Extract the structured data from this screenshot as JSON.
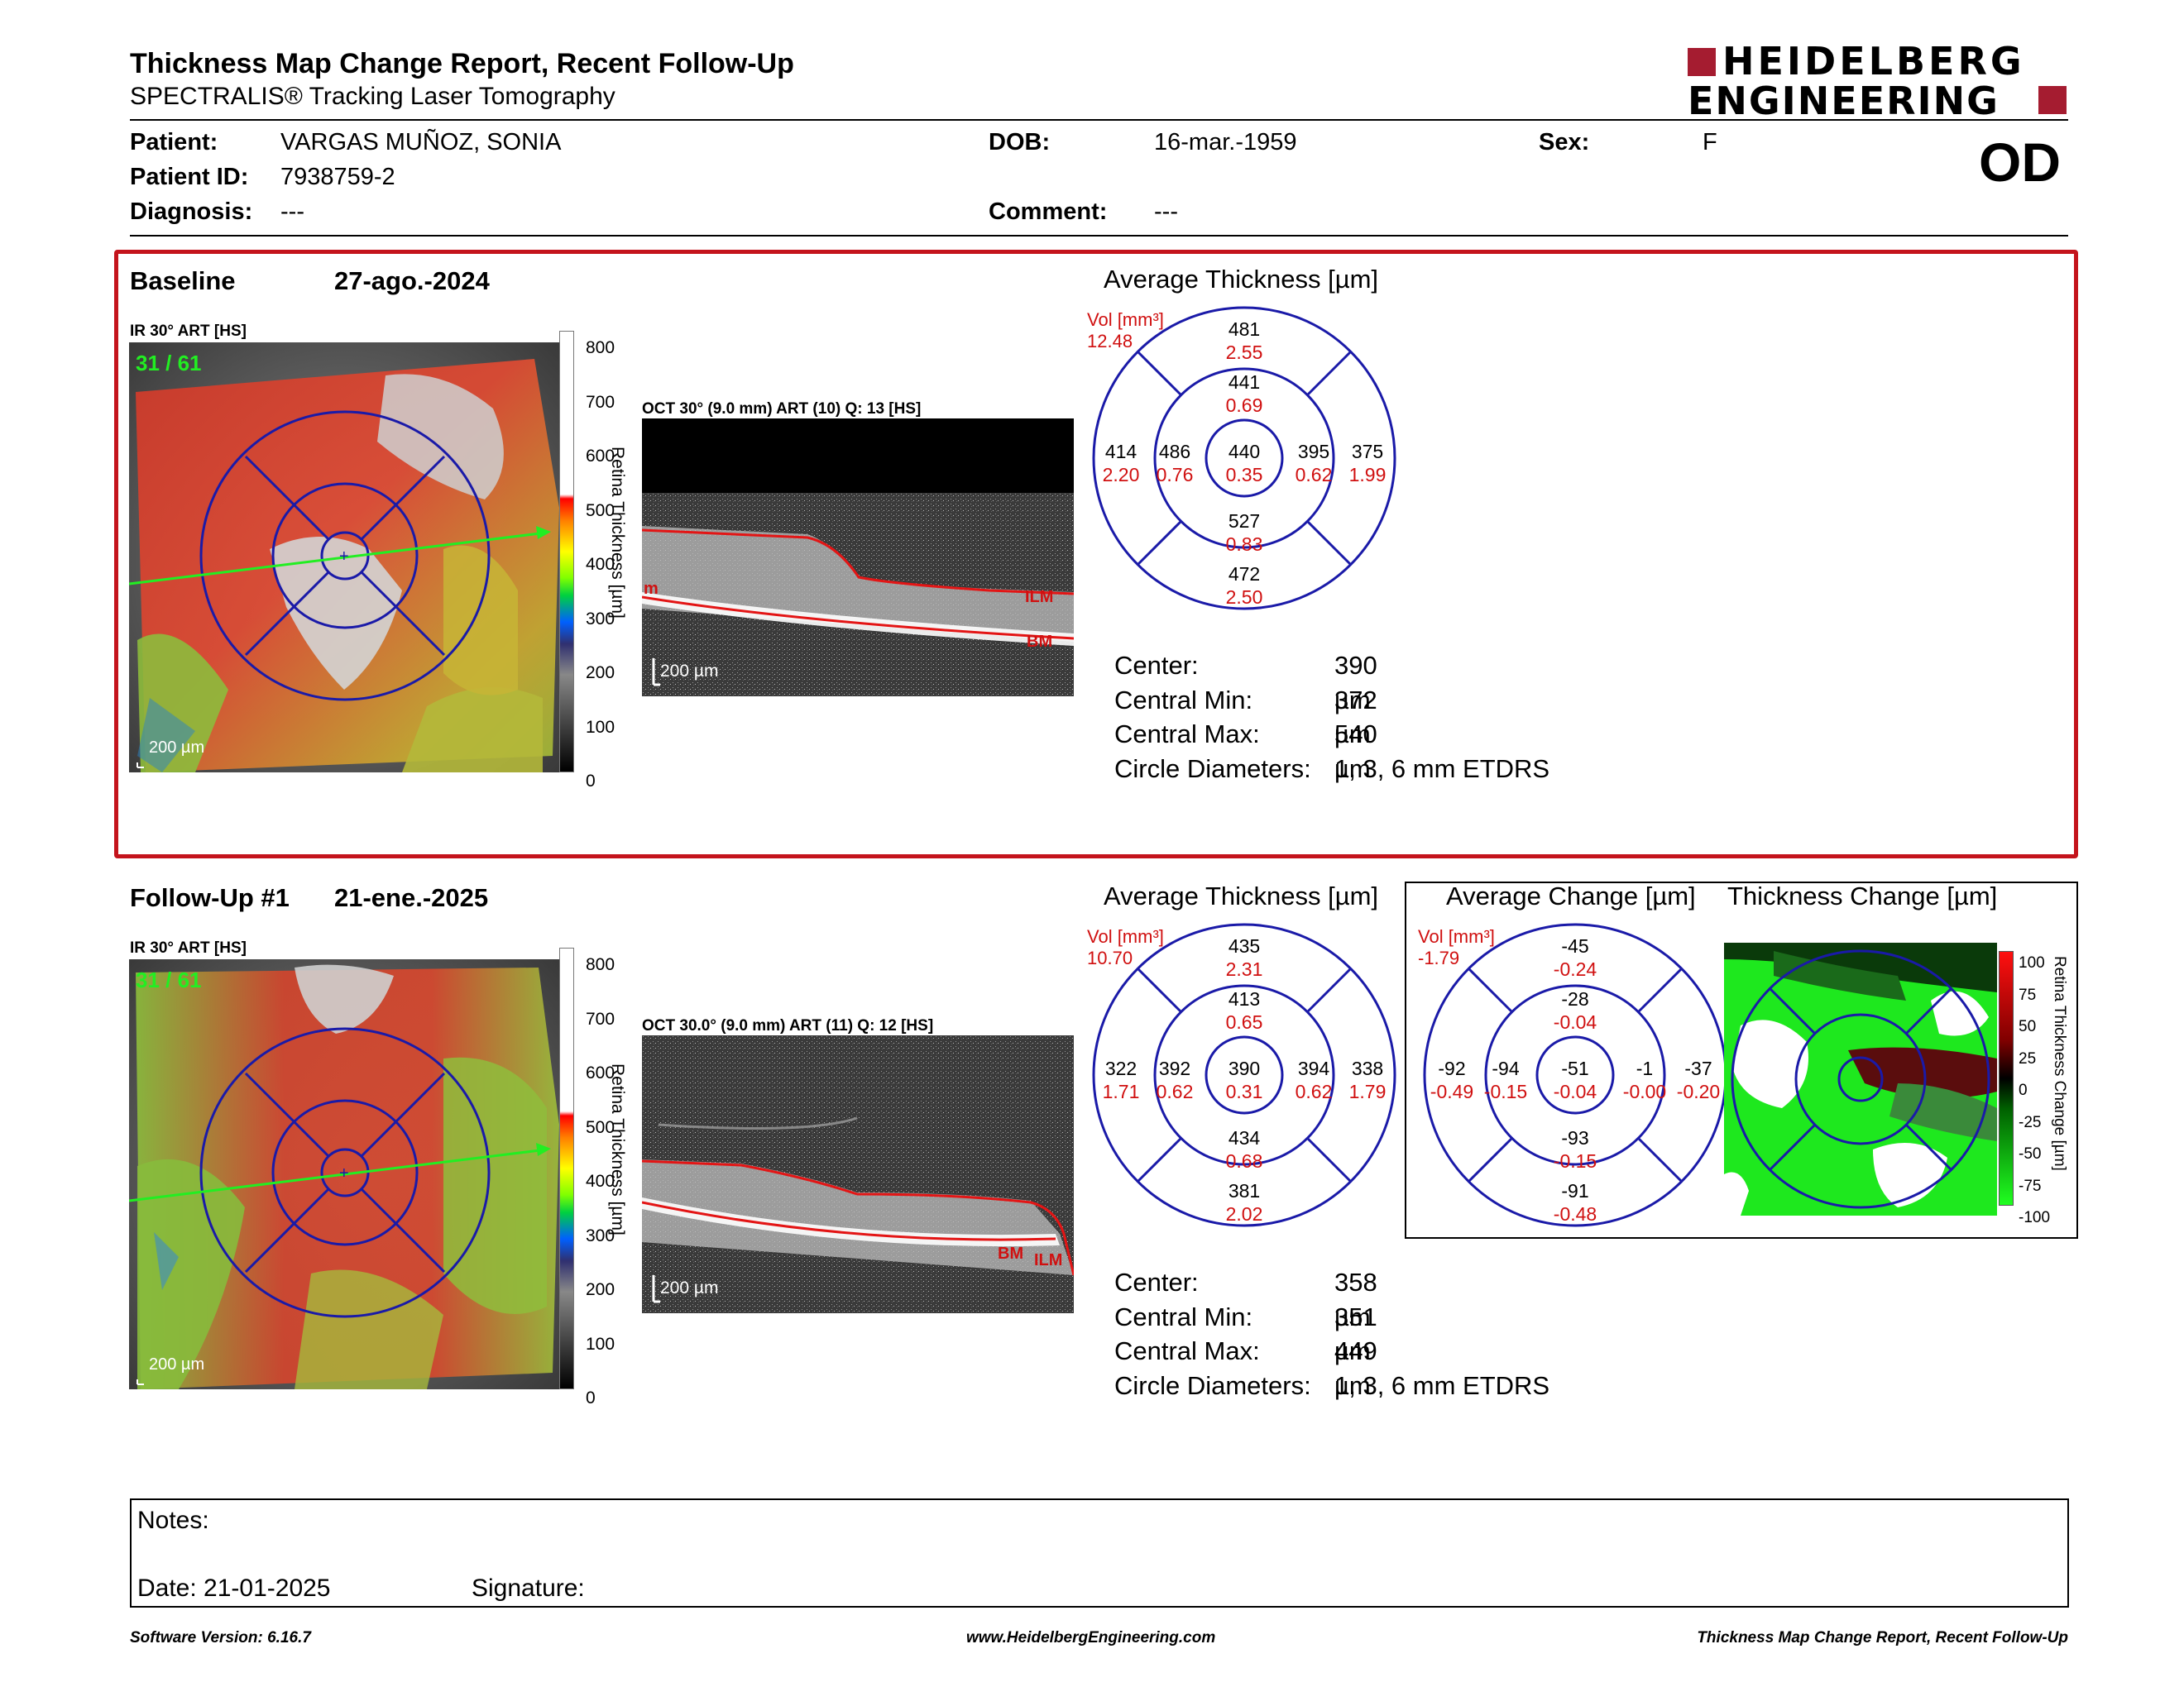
{
  "header": {
    "title": "Thickness Map Change Report, Recent Follow-Up",
    "subtitle": "SPECTRALIS® Tracking Laser Tomography",
    "logo_line1": "HEIDELBERG",
    "logo_line2": "ENGINEERING",
    "eye": "OD"
  },
  "patient": {
    "patient_label": "Patient:",
    "patient_value": "VARGAS MUÑOZ, SONIA",
    "id_label": "Patient ID:",
    "id_value": "7938759-2",
    "diag_label": "Diagnosis:",
    "diag_value": "---",
    "dob_label": "DOB:",
    "dob_value": "16-mar.-1959",
    "comment_label": "Comment:",
    "comment_value": "---",
    "sex_label": "Sex:",
    "sex_value": "F"
  },
  "baseline": {
    "label": "Baseline",
    "date": "27-ago.-2024",
    "ir_label": "IR 30° ART [HS]",
    "frame": "31 / 61",
    "scale": "200 µm",
    "oct_label": "OCT 30° (9.0 mm) ART (10) Q: 13 [HS]",
    "oct_scale": "200 µm",
    "colorbar_ticks": [
      "800",
      "700",
      "600",
      "500",
      "400",
      "300",
      "200",
      "100",
      "0"
    ],
    "colorbar_title": "Retina Thickness [µm]",
    "oct_tags": [
      "ILM",
      "BM",
      "m"
    ],
    "avg_title": "Average Thickness [µm]",
    "vol_label": "Vol [mm³]",
    "vol_value": "12.48",
    "etdrs": {
      "outer_sup": [
        "481",
        "2.55"
      ],
      "inner_sup": [
        "441",
        "0.69"
      ],
      "outer_temp": [
        "414",
        "2.20"
      ],
      "inner_temp": [
        "486",
        "0.76"
      ],
      "center": [
        "440",
        "0.35"
      ],
      "inner_nas": [
        "395",
        "0.62"
      ],
      "outer_nas": [
        "375",
        "1.99"
      ],
      "inner_inf": [
        "527",
        "0.83"
      ],
      "outer_inf": [
        "472",
        "2.50"
      ]
    },
    "stats": [
      {
        "label": "Center:",
        "value": "390 µm"
      },
      {
        "label": "Central Min:",
        "value": "372 µm"
      },
      {
        "label": "Central Max:",
        "value": "540 µm"
      },
      {
        "label": "Circle Diameters:",
        "value": "1, 3, 6 mm ETDRS"
      }
    ]
  },
  "followup": {
    "label": "Follow-Up #1",
    "date": "21-ene.-2025",
    "ir_label": "IR 30° ART [HS]",
    "frame": "31 / 61",
    "scale": "200 µm",
    "oct_label": "OCT 30.0° (9.0 mm) ART (11) Q: 12 [HS]",
    "oct_scale": "200 µm",
    "colorbar_ticks": [
      "800",
      "700",
      "600",
      "500",
      "400",
      "300",
      "200",
      "100",
      "0"
    ],
    "colorbar_title": "Retina Thickness [µm]",
    "oct_tags": [
      "BM",
      "ILM"
    ],
    "avg_title": "Average Thickness [µm]",
    "vol_label": "Vol [mm³]",
    "vol_value": "10.70",
    "etdrs": {
      "outer_sup": [
        "435",
        "2.31"
      ],
      "inner_sup": [
        "413",
        "0.65"
      ],
      "outer_temp": [
        "322",
        "1.71"
      ],
      "inner_temp": [
        "392",
        "0.62"
      ],
      "center": [
        "390",
        "0.31"
      ],
      "inner_nas": [
        "394",
        "0.62"
      ],
      "outer_nas": [
        "338",
        "1.79"
      ],
      "inner_inf": [
        "434",
        "0.68"
      ],
      "outer_inf": [
        "381",
        "2.02"
      ]
    },
    "change_title": "Average Change [µm]",
    "change_vol_label": "Vol [mm³]",
    "change_vol_value": "-1.79",
    "change": {
      "outer_sup": [
        "-45",
        "-0.24"
      ],
      "inner_sup": [
        "-28",
        "-0.04"
      ],
      "outer_temp": [
        "-92",
        "-0.49"
      ],
      "inner_temp": [
        "-94",
        "-0.15"
      ],
      "center": [
        "-51",
        "-0.04"
      ],
      "inner_nas": [
        "-1",
        "-0.00"
      ],
      "outer_nas": [
        "-37",
        "-0.20"
      ],
      "inner_inf": [
        "-93",
        "-0.15"
      ],
      "outer_inf": [
        "-91",
        "-0.48"
      ]
    },
    "thick_change_title": "Thickness Change [µm]",
    "tc_ticks": [
      "100",
      "75",
      "50",
      "25",
      "0",
      "-25",
      "-50",
      "-75",
      "-100"
    ],
    "tc_bar_title": "Retina Thickness Change [µm]",
    "stats": [
      {
        "label": "Center:",
        "value": "358 µm"
      },
      {
        "label": "Central Min:",
        "value": "351 µm"
      },
      {
        "label": "Central Max:",
        "value": "449 µm"
      },
      {
        "label": "Circle Diameters:",
        "value": "1, 3, 6 mm ETDRS"
      }
    ]
  },
  "notes": {
    "label": "Notes:",
    "date": "Date: 21-01-2025",
    "signature": "Signature:"
  },
  "footer": {
    "version": "Software Version: 6.16.7",
    "url": "www.HeidelbergEngineering.com",
    "report": "Thickness Map Change Report, Recent Follow-Up"
  },
  "colors": {
    "accent_red": "#c4141c",
    "grid_blue": "#1a1aa8",
    "value_red": "#d01010",
    "logo_red": "#a51c30"
  }
}
